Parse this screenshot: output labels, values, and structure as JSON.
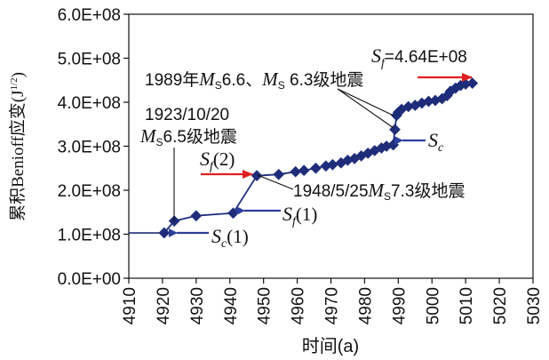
{
  "chart_data": {
    "type": "line",
    "title": "",
    "xlabel": "时间(a)",
    "ylabel": "累积Benioff应变(J",
    "ylabel_sup": "1/2",
    "ylabel_close": ")",
    "xlim": [
      4910,
      5030
    ],
    "ylim": [
      0,
      600000000
    ],
    "x_ticks": [
      4910,
      4920,
      4930,
      4940,
      4950,
      4960,
      4970,
      4980,
      4990,
      5000,
      5010,
      5020,
      5030
    ],
    "x_tick_labels": [
      "4910",
      "4920",
      "4930",
      "4940",
      "4950",
      "4960",
      "4970",
      "4980",
      "4990",
      "5000",
      "5010",
      "5020",
      "5030"
    ],
    "y_ticks": [
      0,
      100000000,
      200000000,
      300000000,
      400000000,
      500000000,
      600000000
    ],
    "y_tick_labels": [
      "0.0E+00",
      "1.0E+08",
      "2.0E+08",
      "3.0E+08",
      "4.0E+08",
      "5.0E+08",
      "6.0E+08"
    ],
    "baseline": {
      "x": [
        4910,
        4920.5
      ],
      "y": [
        103000000,
        103000000
      ]
    },
    "series": [
      {
        "name": "cumulative Benioff strain",
        "color": "#1e2d7a",
        "x": [
          4920.5,
          4923.5,
          4930,
          4941,
          4948,
          4954.5,
          4959.5,
          4962,
          4965.5,
          4968.5,
          4970.5,
          4973,
          4975,
          4977,
          4979,
          4981,
          4983,
          4985,
          4986.5,
          4988.5,
          4989,
          4989.5,
          4990,
          4991,
          4993,
          4995,
          4997,
          4999,
          5001,
          5003,
          5004.5,
          5005.5,
          5007,
          5008.5,
          5010,
          5012
        ],
        "y": [
          103000000,
          130000000,
          142000000,
          148000000,
          233000000,
          236000000,
          242000000,
          245000000,
          250000000,
          255000000,
          258000000,
          262000000,
          268000000,
          272000000,
          278000000,
          284000000,
          290000000,
          296000000,
          300000000,
          303000000,
          338000000,
          370000000,
          377000000,
          384000000,
          390000000,
          393000000,
          398000000,
          402000000,
          404000000,
          408000000,
          415000000,
          425000000,
          432000000,
          438000000,
          441000000,
          443000000
        ]
      }
    ],
    "annotations": [
      {
        "name": "sf-final",
        "sym": "S",
        "sub": "f",
        "rest": "=4.64E+08"
      },
      {
        "name": "event-1989",
        "pre": "1989年",
        "m1": "M",
        "s1": "S",
        "mid": "6.6、",
        "m2": "M",
        "s2": "S",
        "post": " 6.3级地震"
      },
      {
        "name": "event-1923-date",
        "text": "1923/10/20"
      },
      {
        "name": "event-1923-mag",
        "m": "M",
        "s": "S",
        "post": "6.5级地震"
      },
      {
        "name": "sf2",
        "sym": "S",
        "sub": "f",
        "paren": "(2)"
      },
      {
        "name": "event-1948",
        "pre": "1948/5/25",
        "m": "M",
        "s": "S",
        "post": "7.3级地震"
      },
      {
        "name": "sf1",
        "sym": "S",
        "sub": "f",
        "paren": "(1)"
      },
      {
        "name": "sc",
        "sym": "S",
        "sub": "c"
      },
      {
        "name": "sc1",
        "sym": "S",
        "sub": "c",
        "paren": "(1)"
      }
    ],
    "colors": {
      "data": "#1e2d7a",
      "arrow_blue": "#2b3f9e",
      "arrow_red": "#e02020",
      "axis": "#111111"
    }
  }
}
